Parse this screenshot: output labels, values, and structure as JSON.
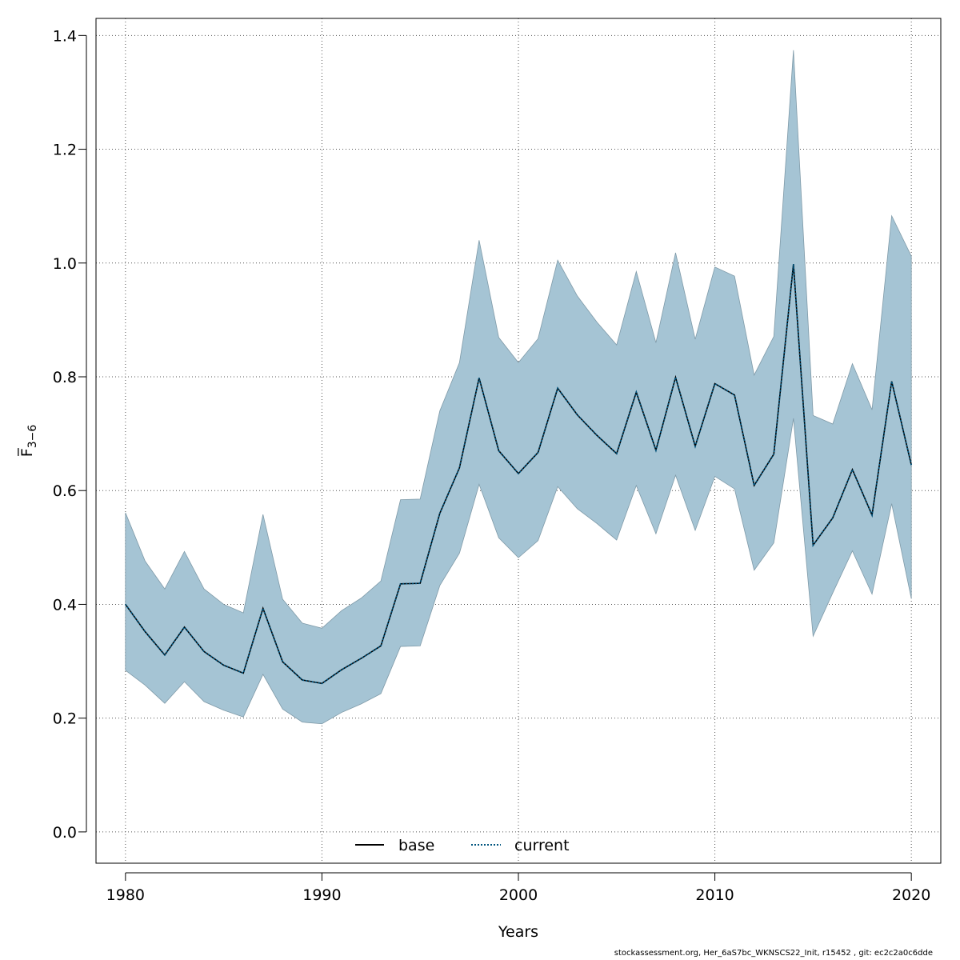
{
  "chart_data": {
    "type": "area",
    "xlabel": "Years",
    "ylabel": "F̅",
    "ylabel_subscript": "3−6",
    "xlim": [
      1978.5,
      2021.5
    ],
    "ylim": [
      -0.055,
      1.43
    ],
    "xticks": [
      1980,
      1990,
      2000,
      2010,
      2020
    ],
    "yticks": [
      0.0,
      0.2,
      0.4,
      0.6,
      0.8,
      1.0,
      1.2,
      1.4
    ],
    "ytick_labels": [
      "0.0",
      "0.2",
      "0.4",
      "0.6",
      "0.8",
      "1.0",
      "1.2",
      "1.4"
    ],
    "grid": true,
    "legend_position": "bottom-center",
    "legend": [
      {
        "label": "base",
        "style": "solid",
        "color": "#000000"
      },
      {
        "label": "current",
        "style": "dotted",
        "color": "#00557f"
      }
    ],
    "x": [
      1980,
      1981,
      1982,
      1983,
      1984,
      1985,
      1986,
      1987,
      1988,
      1989,
      1990,
      1991,
      1992,
      1993,
      1994,
      1995,
      1996,
      1997,
      1998,
      1999,
      2000,
      2001,
      2002,
      2003,
      2004,
      2005,
      2006,
      2007,
      2008,
      2009,
      2010,
      2011,
      2012,
      2013,
      2014,
      2015,
      2016,
      2017,
      2018,
      2019,
      2020
    ],
    "series": [
      {
        "name": "base",
        "color": "#000000",
        "values": [
          0.4,
          0.352,
          0.311,
          0.36,
          0.317,
          0.293,
          0.279,
          0.393,
          0.299,
          0.267,
          0.261,
          0.285,
          0.305,
          0.327,
          0.436,
          0.437,
          0.56,
          0.64,
          0.798,
          0.67,
          0.63,
          0.667,
          0.78,
          0.733,
          0.697,
          0.665,
          0.773,
          0.671,
          0.799,
          0.678,
          0.788,
          0.768,
          0.609,
          0.664,
          0.998,
          0.504,
          0.552,
          0.637,
          0.557,
          0.792,
          0.645
        ]
      },
      {
        "name": "current",
        "color": "#00557f",
        "values": [
          0.4,
          0.352,
          0.311,
          0.36,
          0.317,
          0.293,
          0.279,
          0.393,
          0.299,
          0.267,
          0.261,
          0.285,
          0.305,
          0.327,
          0.436,
          0.437,
          0.56,
          0.64,
          0.798,
          0.67,
          0.63,
          0.667,
          0.78,
          0.733,
          0.697,
          0.665,
          0.773,
          0.671,
          0.799,
          0.678,
          0.788,
          0.768,
          0.609,
          0.664,
          0.998,
          0.504,
          0.552,
          0.637,
          0.557,
          0.792,
          0.645
        ]
      }
    ],
    "band": {
      "color": "#a5c4d4",
      "stroke": "#7f9aa8",
      "upper": [
        0.561,
        0.476,
        0.427,
        0.493,
        0.427,
        0.4,
        0.385,
        0.558,
        0.409,
        0.367,
        0.358,
        0.389,
        0.411,
        0.441,
        0.584,
        0.585,
        0.74,
        0.825,
        1.04,
        0.869,
        0.825,
        0.867,
        1.005,
        0.942,
        0.896,
        0.856,
        0.985,
        0.86,
        1.018,
        0.866,
        0.993,
        0.977,
        0.803,
        0.871,
        1.374,
        0.732,
        0.717,
        0.823,
        0.742,
        1.083,
        1.012
      ],
      "lower": [
        0.284,
        0.258,
        0.226,
        0.264,
        0.229,
        0.214,
        0.202,
        0.277,
        0.216,
        0.193,
        0.19,
        0.21,
        0.225,
        0.243,
        0.326,
        0.327,
        0.433,
        0.49,
        0.611,
        0.517,
        0.482,
        0.512,
        0.607,
        0.568,
        0.542,
        0.513,
        0.609,
        0.524,
        0.627,
        0.53,
        0.625,
        0.603,
        0.46,
        0.508,
        0.727,
        0.344,
        0.42,
        0.494,
        0.418,
        0.577,
        0.41
      ]
    }
  },
  "footer": "stockassessment.org, Her_6aS7bc_WKNSCS22_Init, r15452 , git: ec2c2a0c6dde"
}
